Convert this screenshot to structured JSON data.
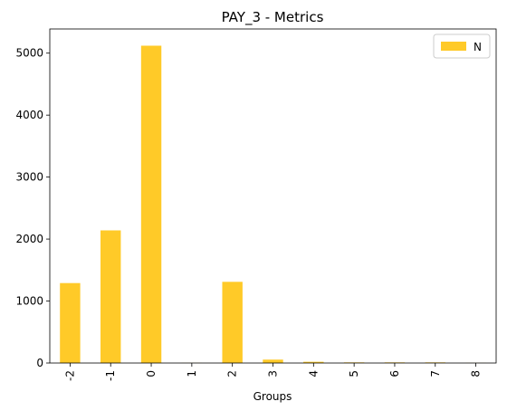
{
  "chart_data": {
    "type": "bar",
    "title": "PAY_3 - Metrics",
    "xlabel": "Groups",
    "ylabel": "",
    "categories": [
      "-2",
      "-1",
      "0",
      "1",
      "2",
      "3",
      "4",
      "5",
      "6",
      "7",
      "8"
    ],
    "series": [
      {
        "name": "N",
        "values": [
          1290,
          2140,
          5120,
          2,
          1310,
          55,
          20,
          10,
          10,
          10,
          2
        ]
      }
    ],
    "ylim": [
      0,
      5390
    ],
    "yticks": [
      0,
      1000,
      2000,
      3000,
      4000,
      5000
    ],
    "ytick_labels": [
      "0",
      "1000",
      "2000",
      "3000",
      "4000",
      "5000"
    ],
    "grid": false,
    "legend": "top-right",
    "bar_color": "#ffca28"
  }
}
